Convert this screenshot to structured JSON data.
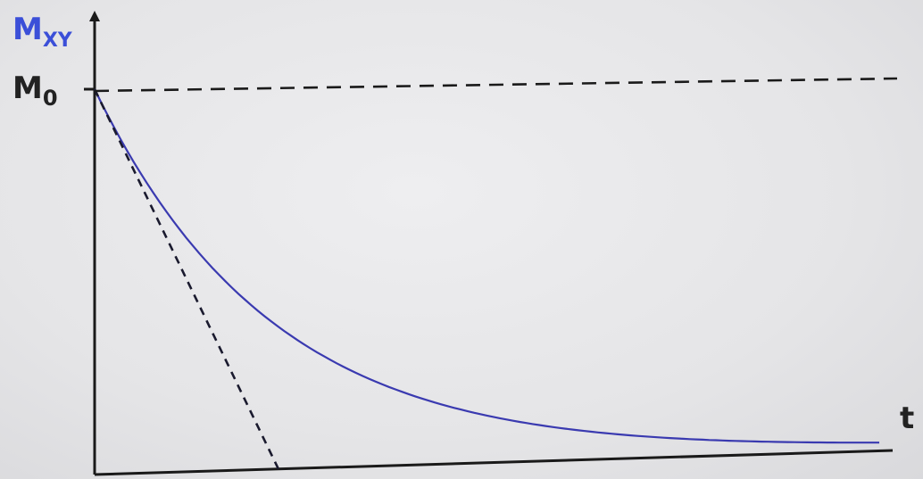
{
  "chart_data": {
    "type": "line",
    "ylabel": {
      "main": "M",
      "sub": "XY"
    },
    "xlabel": "t",
    "y_tick_labels": [
      {
        "main": "M",
        "sub": "0",
        "value": 1.0
      }
    ],
    "xlim": [
      0,
      4.3
    ],
    "ylim": [
      0,
      1.18
    ],
    "series": [
      {
        "style": "solid",
        "color": "#3a3ab0",
        "function": "exp_decay",
        "x": [
          0,
          0.25,
          0.5,
          0.75,
          1.0,
          1.25,
          1.5,
          1.75,
          2.0,
          2.25,
          2.5,
          2.75,
          3.0,
          3.25,
          3.5,
          3.75,
          4.0,
          4.3
        ],
        "y": [
          1.0,
          0.78,
          0.61,
          0.47,
          0.37,
          0.29,
          0.22,
          0.17,
          0.14,
          0.11,
          0.08,
          0.06,
          0.05,
          0.04,
          0.03,
          0.02,
          0.02,
          0.01
        ]
      },
      {
        "style": "dashed",
        "color": "#1a1a2e",
        "function": "tangent",
        "x": [
          0,
          1.0
        ],
        "y": [
          1.0,
          0.0
        ]
      },
      {
        "style": "dashed",
        "color": "#1a1a1a",
        "function": "asymptote",
        "x": [
          0,
          4.4
        ],
        "y": [
          1.0,
          1.0
        ]
      }
    ],
    "colors": {
      "ylabel": "#3b4fd8",
      "text": "#222222",
      "axis": "#1a1a1a"
    }
  }
}
